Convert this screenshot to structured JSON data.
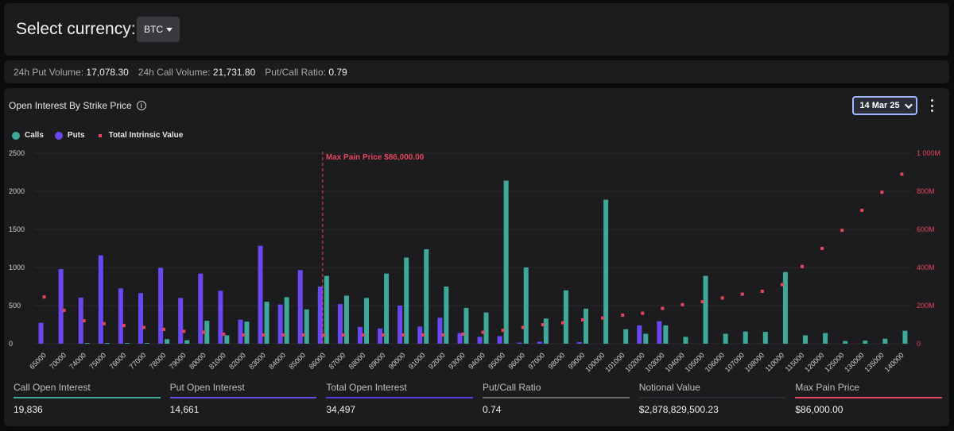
{
  "header": {
    "label": "Select currency:",
    "currency": "BTC"
  },
  "stats": [
    {
      "label": "24h Put Volume:",
      "value": "17,078.30"
    },
    {
      "label": "24h Call Volume:",
      "value": "21,731.80"
    },
    {
      "label": "Put/Call Ratio:",
      "value": "0.79"
    }
  ],
  "panel": {
    "title": "Open Interest By Strike Price",
    "date": "14 Mar 25"
  },
  "legend": {
    "calls": "Calls",
    "puts": "Puts",
    "intrinsic": "Total Intrinsic Value"
  },
  "colors": {
    "calls": "#3ea99b",
    "puts": "#6a47f0",
    "intrinsic": "#e5465c",
    "grid": "#2a2a2e"
  },
  "chart_data": {
    "type": "bar",
    "categories": [
      "65000",
      "70000",
      "74000",
      "75000",
      "76000",
      "77000",
      "78000",
      "79000",
      "80000",
      "81000",
      "82000",
      "83000",
      "84000",
      "85000",
      "86000",
      "87000",
      "88000",
      "89000",
      "90000",
      "91000",
      "92000",
      "93000",
      "94000",
      "95000",
      "96000",
      "97000",
      "98000",
      "99000",
      "100000",
      "101000",
      "102000",
      "103000",
      "104000",
      "105000",
      "106000",
      "107000",
      "108000",
      "110000",
      "115000",
      "120000",
      "125000",
      "130000",
      "135000",
      "140000"
    ],
    "series": [
      {
        "name": "Calls",
        "axis": "left",
        "values": [
          0,
          0,
          10,
          10,
          10,
          10,
          60,
          45,
          300,
          110,
          290,
          550,
          610,
          450,
          890,
          630,
          600,
          920,
          1130,
          1240,
          750,
          470,
          410,
          2140,
          1000,
          330,
          700,
          460,
          1890,
          190,
          130,
          240,
          90,
          890,
          130,
          160,
          155,
          940,
          110,
          140,
          35,
          40,
          65,
          170
        ]
      },
      {
        "name": "Puts",
        "axis": "left",
        "values": [
          275,
          980,
          605,
          1160,
          725,
          665,
          995,
          600,
          920,
          695,
          315,
          1285,
          515,
          965,
          750,
          520,
          220,
          200,
          500,
          225,
          340,
          140,
          90,
          100,
          15,
          25,
          0,
          20,
          0,
          0,
          240,
          295,
          0,
          0,
          0,
          0,
          0,
          0,
          0,
          0,
          0,
          0,
          0,
          0
        ]
      },
      {
        "name": "Total Intrinsic Value",
        "axis": "right",
        "values": [
          245,
          175,
          120,
          105,
          95,
          85,
          75,
          65,
          60,
          50,
          45,
          45,
          45,
          45,
          45,
          45,
          45,
          45,
          45,
          45,
          45,
          50,
          60,
          70,
          85,
          100,
          110,
          125,
          135,
          150,
          160,
          185,
          205,
          220,
          240,
          260,
          275,
          310,
          405,
          500,
          595,
          700,
          795,
          890
        ]
      }
    ],
    "ylim_left": [
      0,
      2500
    ],
    "ylim_right": [
      0,
      1000
    ],
    "yticks_left": [
      "0",
      "500",
      "1000",
      "1500",
      "2000",
      "2500"
    ],
    "yticks_right": [
      "0",
      "200M",
      "400M",
      "600M",
      "800M",
      "1 000M"
    ],
    "annotation": {
      "x": "86000",
      "label": "Max Pain Price $86,000.00"
    },
    "grid": true,
    "legend_position": "top-left"
  },
  "footer": [
    {
      "label": "Call Open Interest",
      "value": "19,836",
      "color": "#3ea99b"
    },
    {
      "label": "Put Open Interest",
      "value": "14,661",
      "color": "#6a47f0"
    },
    {
      "label": "Total Open Interest",
      "value": "34,497",
      "color": "#5b3fd8"
    },
    {
      "label": "Put/Call Ratio",
      "value": "0.74",
      "color": "#6b6b6b"
    },
    {
      "label": "Notional Value",
      "value": "$2,878,829,500.23",
      "color": "#2b2b2f"
    },
    {
      "label": "Max Pain Price",
      "value": "$86,000.00",
      "color": "#e5465c"
    }
  ]
}
